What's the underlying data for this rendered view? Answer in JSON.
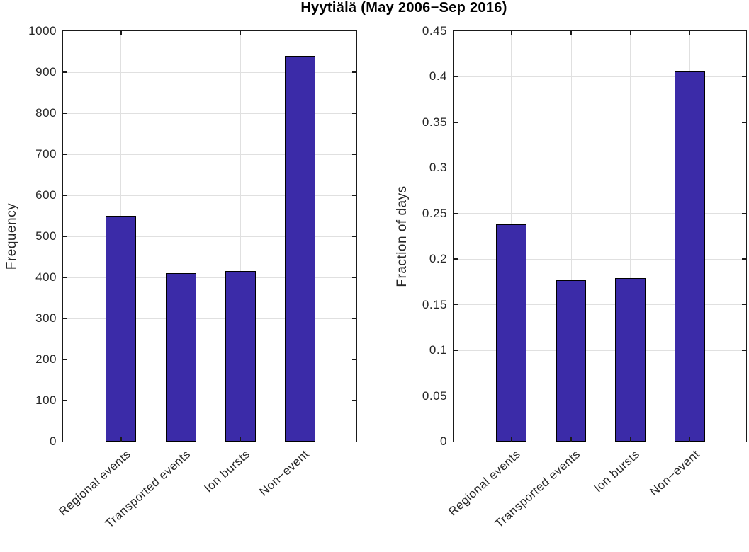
{
  "title": "Hyytiälä (May 2006−Sep 2016)",
  "colors": {
    "bar_fill": "#3b2ba8",
    "bar_edge": "#000000",
    "grid": "#e0e0e0",
    "axis": "#1a1a1a",
    "tick_text": "#262626",
    "title_text": "#000000",
    "background": "#ffffff"
  },
  "categories": [
    "Regional events",
    "Transported events",
    "Ion bursts",
    "Non−event"
  ],
  "chart_data": [
    {
      "type": "bar",
      "name": "frequency-panel",
      "title": "Hyytiälä (May 2006−Sep 2016)",
      "xlabel": "",
      "ylabel": "Frequency",
      "categories": [
        "Regional events",
        "Transported events",
        "Ion bursts",
        "Non−event"
      ],
      "values": [
        550,
        410,
        415,
        940
      ],
      "ylim": [
        0,
        1000
      ],
      "ytick_labels": [
        "0",
        "100",
        "200",
        "300",
        "400",
        "500",
        "600",
        "700",
        "800",
        "900",
        "1000"
      ],
      "ytick_values": [
        0,
        100,
        200,
        300,
        400,
        500,
        600,
        700,
        800,
        900,
        1000
      ],
      "grid": true,
      "legend": null,
      "bar_color": "#3b2ba8"
    },
    {
      "type": "bar",
      "name": "fraction-panel",
      "title": "Hyytiälä (May 2006−Sep 2016)",
      "xlabel": "",
      "ylabel": "Fraction of days",
      "categories": [
        "Regional events",
        "Transported events",
        "Ion bursts",
        "Non−event"
      ],
      "values": [
        0.238,
        0.177,
        0.179,
        0.406
      ],
      "ylim": [
        0,
        0.45
      ],
      "ytick_labels": [
        "0",
        "0.05",
        "0.1",
        "0.15",
        "0.2",
        "0.25",
        "0.3",
        "0.35",
        "0.4",
        "0.45"
      ],
      "ytick_values": [
        0,
        0.05,
        0.1,
        0.15,
        0.2,
        0.25,
        0.3,
        0.35,
        0.4,
        0.45
      ],
      "grid": true,
      "legend": null,
      "bar_color": "#3b2ba8"
    }
  ]
}
